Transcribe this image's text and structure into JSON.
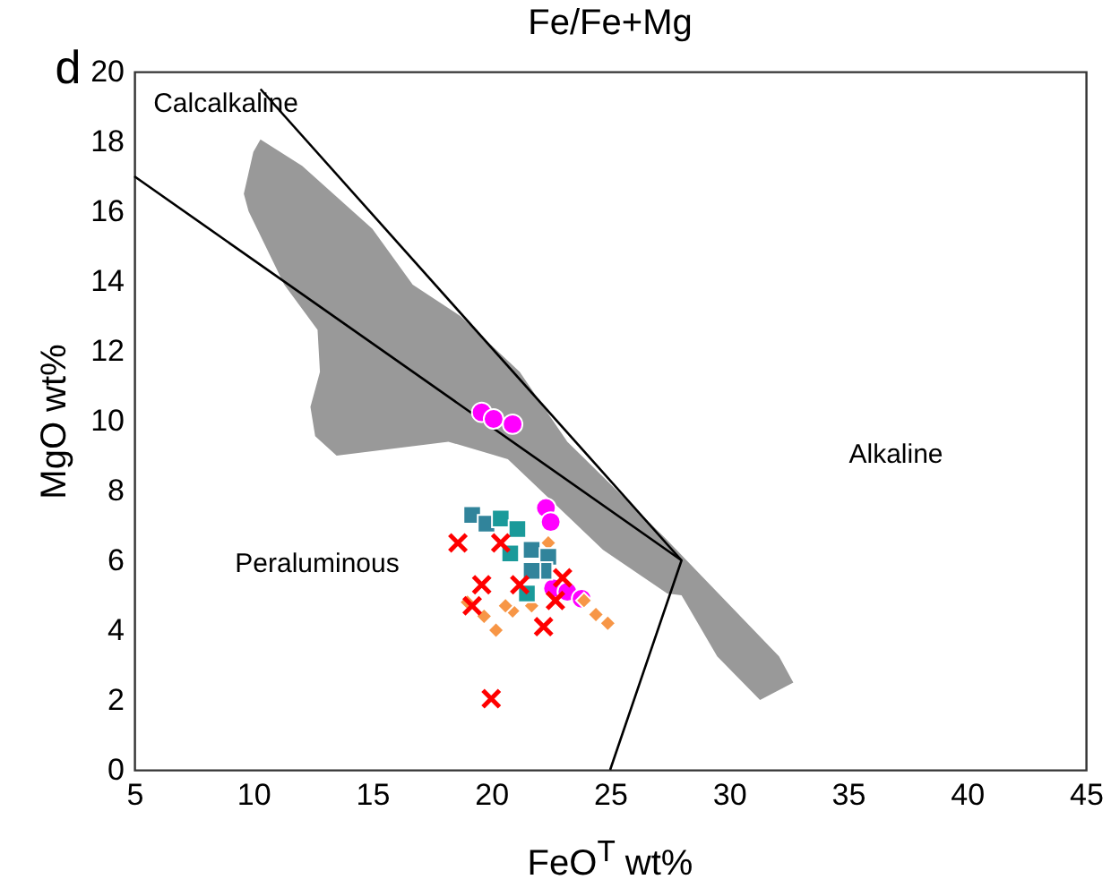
{
  "chart_data": {
    "type": "scatter",
    "title": "Fe/Fe+Mg",
    "xlabel": "FeO$^{T}$ wt%",
    "ylabel": "MgO wt%",
    "xlim": [
      5,
      45
    ],
    "xticks": [
      5,
      10,
      15,
      20,
      25,
      30,
      35,
      40,
      45
    ],
    "ylim": [
      0,
      20
    ],
    "yticks": [
      0,
      2,
      4,
      6,
      8,
      10,
      12,
      14,
      16,
      18,
      20
    ],
    "grid": false,
    "annotations": [
      "d",
      "Calcalkaline",
      "Alkaline",
      "Peraluminous"
    ],
    "series": [
      {
        "type": "area",
        "color": "#999999",
        "x": [
          10.3,
          12.05,
          15.0,
          16.7,
          18.7,
          21.2,
          23.2,
          27.3,
          32.1,
          32.7,
          31.3,
          29.5,
          28.0,
          27.4,
          24.7,
          22.7,
          20.7,
          18.2,
          13.5,
          12.6,
          12.4,
          12.8,
          12.7,
          11.3,
          9.8,
          9.6,
          10.0
        ],
        "values": [
          18.06,
          17.3,
          15.5,
          13.9,
          13.0,
          11.4,
          9.4,
          6.65,
          3.25,
          2.5,
          2.0,
          3.25,
          5.0,
          5.05,
          6.3,
          7.6,
          8.9,
          9.4,
          9.0,
          9.56,
          10.4,
          11.4,
          12.6,
          13.9,
          16.0,
          16.5,
          17.7
        ]
      },
      {
        "type": "line",
        "color": "#000000",
        "x": [
          5,
          28,
          25
        ],
        "values": [
          17,
          6,
          0
        ]
      },
      {
        "type": "line",
        "color": "#000000",
        "x": [
          10.3,
          28
        ],
        "values": [
          19.5,
          6
        ]
      },
      {
        "marker": "circle",
        "color": "#ff00ff",
        "x": [
          19.6,
          20.1,
          20.9,
          22.3,
          22.5,
          22.6,
          23.2,
          23.8
        ],
        "values": [
          10.24,
          10.05,
          9.9,
          7.5,
          7.1,
          5.2,
          5.1,
          4.9
        ]
      },
      {
        "marker": "diamond",
        "color": "#f79646",
        "x": [
          19.0,
          19.7,
          20.2,
          20.9,
          21.7,
          22.4,
          24.4,
          23.9,
          20.6,
          24.9
        ],
        "values": [
          4.8,
          4.4,
          4.0,
          4.55,
          4.7,
          6.5,
          4.45,
          4.85,
          4.7,
          4.2
        ]
      },
      {
        "marker": "square",
        "color": "#31849b",
        "x": [
          19.2,
          19.8,
          21.7,
          22.4,
          22.2,
          21.7
        ],
        "values": [
          7.3,
          7.05,
          6.3,
          6.1,
          5.7,
          5.7
        ]
      },
      {
        "marker": "square",
        "color": "#1a9a9a",
        "x": [
          20.4,
          21.1,
          20.8,
          21.5
        ],
        "values": [
          7.2,
          6.9,
          6.2,
          5.05
        ]
      },
      {
        "marker": "cross",
        "color": "#ff0000",
        "x": [
          18.6,
          19.6,
          19.2,
          20.4,
          21.2,
          22.2,
          23.0,
          22.7,
          20.0
        ],
        "values": [
          6.5,
          5.3,
          4.7,
          6.5,
          5.3,
          4.1,
          5.5,
          4.85,
          2.04
        ]
      }
    ]
  }
}
